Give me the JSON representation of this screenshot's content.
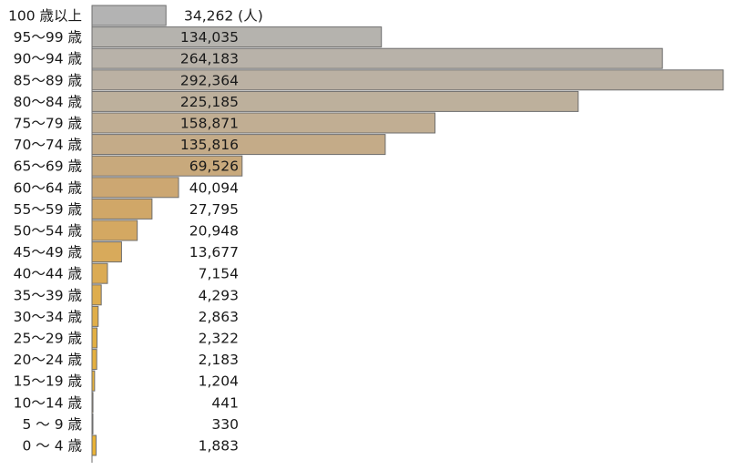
{
  "chart_data": {
    "type": "bar",
    "orientation": "horizontal",
    "categories": [
      "100 歳以上",
      "95〜99 歳",
      "90〜94 歳",
      "85〜89 歳",
      "80〜84 歳",
      "75〜79 歳",
      "70〜74 歳",
      "65〜69 歳",
      "60〜64 歳",
      "55〜59 歳",
      "50〜54 歳",
      "45〜49 歳",
      "40〜44 歳",
      "35〜39 歳",
      "30〜34 歳",
      "25〜29 歳",
      "20〜24 歳",
      "15〜19 歳",
      "10〜14 歳",
      " 5 〜 9 歳",
      " 0 〜 4 歳"
    ],
    "values": [
      34262,
      134035,
      264183,
      292364,
      225185,
      158871,
      135816,
      69526,
      40094,
      27795,
      20948,
      13677,
      7154,
      4293,
      2863,
      2322,
      2183,
      1204,
      441,
      330,
      1883
    ],
    "value_labels": [
      "34,262 (人)",
      "134,035",
      "264,183",
      "292,364",
      "225,185",
      "158,871",
      "135,816",
      "69,526",
      "40,094",
      "27,795",
      "20,948",
      "13,677",
      "7,154",
      "4,293",
      "2,863",
      "2,322",
      "2,183",
      "1,204",
      "441",
      "330",
      "1,883"
    ],
    "bar_colors": [
      "#b3b3b3",
      "#b5b3ae",
      "#b8b2a9",
      "#bbb1a3",
      "#bdb09c",
      "#c1ae93",
      "#c4ab88",
      "#c8a97c",
      "#cca772",
      "#d0a768",
      "#d4a862",
      "#d8aa5b",
      "#dbab54",
      "#dead4e",
      "#e0ae49",
      "#e2af44",
      "#e4b040",
      "#e6b13d",
      "#e7b13a",
      "#e8b238",
      "#e9b236"
    ],
    "unit": "人",
    "xlim": [
      0,
      292364
    ],
    "grid": false,
    "legend": "none"
  }
}
